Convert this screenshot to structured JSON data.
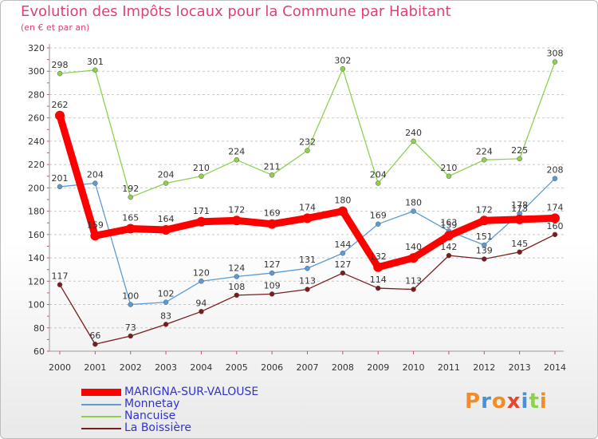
{
  "chart_data": {
    "type": "line",
    "title": "Evolution des Impôts locaux pour la Commune par Habitant",
    "subtitle": "(en € et par an)",
    "xlabel": "",
    "ylabel": "",
    "x": [
      "2000",
      "2001",
      "2002",
      "2003",
      "2004",
      "2005",
      "2006",
      "2007",
      "2008",
      "2009",
      "2010",
      "2011",
      "2012",
      "2013",
      "2014"
    ],
    "yticks": [
      60,
      80,
      100,
      120,
      140,
      160,
      180,
      200,
      220,
      240,
      260,
      280,
      300,
      320
    ],
    "ylim": [
      60,
      320
    ],
    "grid": "horizontal dashed",
    "legend_position": "bottom-left",
    "series": [
      {
        "name": "MARIGNA-SUR-VALOUSE",
        "color": "#ff0000",
        "bold": true,
        "values": [
          262,
          159,
          165,
          164,
          171,
          172,
          169,
          174,
          180,
          132,
          140,
          159,
          172,
          173,
          174
        ]
      },
      {
        "name": "Monnetay",
        "color": "#5b9bd5",
        "bold": false,
        "values": [
          201,
          204,
          100,
          102,
          120,
          124,
          127,
          131,
          144,
          169,
          180,
          163,
          151,
          178,
          208
        ]
      },
      {
        "name": "Nancuise",
        "color": "#8fd14f",
        "bold": false,
        "values": [
          298,
          301,
          192,
          204,
          210,
          224,
          211,
          232,
          302,
          204,
          240,
          210,
          224,
          225,
          308
        ]
      },
      {
        "name": "La Boissière",
        "color": "#7b1c1c",
        "bold": false,
        "values": [
          117,
          66,
          73,
          83,
          94,
          108,
          109,
          113,
          127,
          114,
          113,
          142,
          139,
          145,
          160
        ]
      }
    ]
  },
  "legend": {
    "text_color": "#3333cc"
  },
  "logo": {
    "letters": [
      "P",
      "r",
      "o",
      "x",
      "i",
      "t",
      "i"
    ],
    "colors": [
      "#f28c28",
      "#4a90d9",
      "#f28c28",
      "#e8452c",
      "#4a90d9",
      "#8fd14f",
      "#f28c28"
    ]
  }
}
